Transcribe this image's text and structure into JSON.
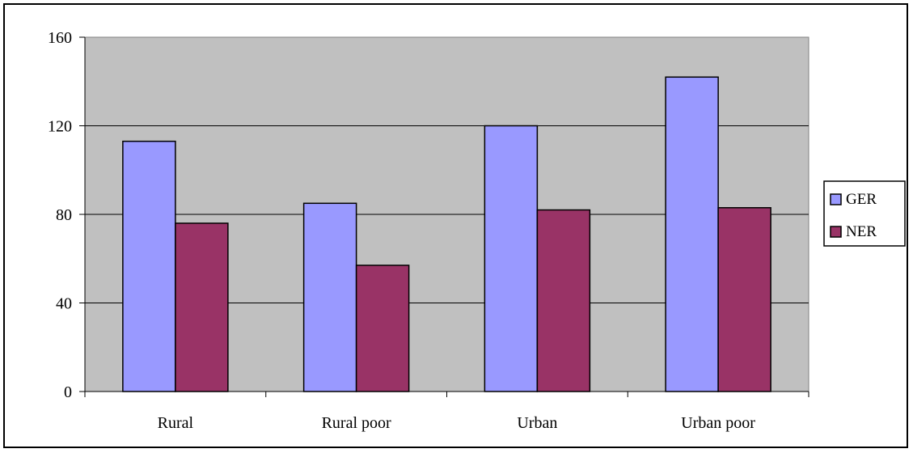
{
  "chart_data": {
    "type": "bar",
    "title": "",
    "xlabel": "",
    "ylabel": "",
    "categories": [
      "Rural",
      "Rural poor",
      "Urban",
      "Urban poor"
    ],
    "series": [
      {
        "name": "GER",
        "values": [
          113,
          85,
          120,
          142
        ],
        "color": "#9999ff"
      },
      {
        "name": "NER",
        "values": [
          76,
          57,
          82,
          83
        ],
        "color": "#993366"
      }
    ],
    "ylim": [
      0,
      160
    ],
    "yticks": [
      0,
      40,
      80,
      120,
      160
    ],
    "grid": true,
    "plot_background": "#c0c0c0",
    "legend_position": "right"
  }
}
